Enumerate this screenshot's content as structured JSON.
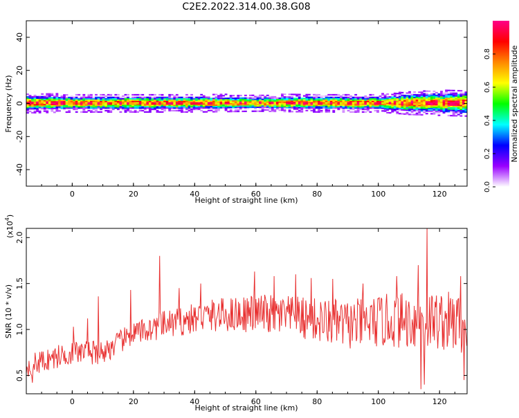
{
  "figure_title": "C2E2.2022.314.00.38.G08",
  "chart_data": [
    {
      "type": "heatmap",
      "xlabel": "Height of straight line (km)",
      "ylabel": "Frequency (Hz)",
      "xlim": [
        -15,
        129
      ],
      "ylim": [
        -50,
        50
      ],
      "xticks": [
        0,
        20,
        40,
        60,
        80,
        100,
        120
      ],
      "yticks": [
        -40,
        -20,
        0,
        20,
        40
      ],
      "xtick_labels": [
        "0",
        "20",
        "40",
        "60",
        "80",
        "100",
        "120"
      ],
      "ytick_labels": [
        "-40",
        "-20",
        "0",
        "20",
        "40"
      ],
      "band_center_hz": 0,
      "band_halfwidth_hz": [
        [
          -15,
          4
        ],
        [
          0,
          3.5
        ],
        [
          20,
          3.5
        ],
        [
          40,
          3.5
        ],
        [
          60,
          3
        ],
        [
          80,
          3.5
        ],
        [
          100,
          3.5
        ],
        [
          110,
          5
        ],
        [
          129,
          6
        ]
      ],
      "colorbar": {
        "label": "Normalized spectral amplitude",
        "range": [
          0,
          1
        ],
        "ticks": [
          0.0,
          0.2,
          0.4,
          0.6,
          0.8
        ],
        "tick_labels": [
          "0.0",
          "0.2",
          "0.4",
          "0.6",
          "0.8"
        ],
        "colors": [
          "#ffffff",
          "#9900ff",
          "#0000ff",
          "#00ffff",
          "#00ff00",
          "#ffff00",
          "#ff8800",
          "#ff0000",
          "#ff0088"
        ]
      },
      "grid": false
    },
    {
      "type": "line",
      "xlabel": "Height of straight line (km)",
      "ylabel": "SNR (10 * v/v)",
      "y_multiplier_label": "(x10",
      "y_multiplier_exp": "4",
      "y_multiplier_close": ")",
      "xlim": [
        -15,
        129
      ],
      "ylim": [
        0.3,
        2.1
      ],
      "xticks": [
        0,
        20,
        40,
        60,
        80,
        100,
        120
      ],
      "yticks": [
        0.5,
        1.0,
        1.5,
        2.0
      ],
      "xtick_labels": [
        "0",
        "20",
        "40",
        "60",
        "80",
        "100",
        "120"
      ],
      "ytick_labels": [
        "0.5",
        "1.0",
        "1.5",
        "2.0"
      ],
      "series": [
        {
          "color": "#e83030",
          "trend": [
            [
              -15,
              0.6
            ],
            [
              0,
              0.75
            ],
            [
              10,
              0.75
            ],
            [
              20,
              0.95
            ],
            [
              30,
              1.05
            ],
            [
              45,
              1.15
            ],
            [
              60,
              1.18
            ],
            [
              75,
              1.12
            ],
            [
              90,
              1.05
            ],
            [
              105,
              1.1
            ],
            [
              120,
              1.1
            ],
            [
              129,
              1.05
            ]
          ],
          "spikes": [
            [
              -14,
              0.55
            ],
            [
              -13,
              0.42
            ],
            [
              0.5,
              1.03
            ],
            [
              5,
              1.12
            ],
            [
              8.5,
              1.36
            ],
            [
              19,
              1.43
            ],
            [
              28.5,
              1.8
            ],
            [
              35,
              1.45
            ],
            [
              42,
              1.5
            ],
            [
              59.5,
              1.63
            ],
            [
              66,
              1.58
            ],
            [
              73,
              1.6
            ],
            [
              78,
              1.56
            ],
            [
              85,
              1.55
            ],
            [
              95,
              1.5
            ],
            [
              106,
              1.58
            ],
            [
              113,
              1.7
            ],
            [
              116,
              2.1
            ],
            [
              115,
              0.4
            ],
            [
              114,
              0.35
            ],
            [
              127,
              1.58
            ],
            [
              128,
              0.45
            ]
          ]
        }
      ],
      "grid": false
    }
  ]
}
